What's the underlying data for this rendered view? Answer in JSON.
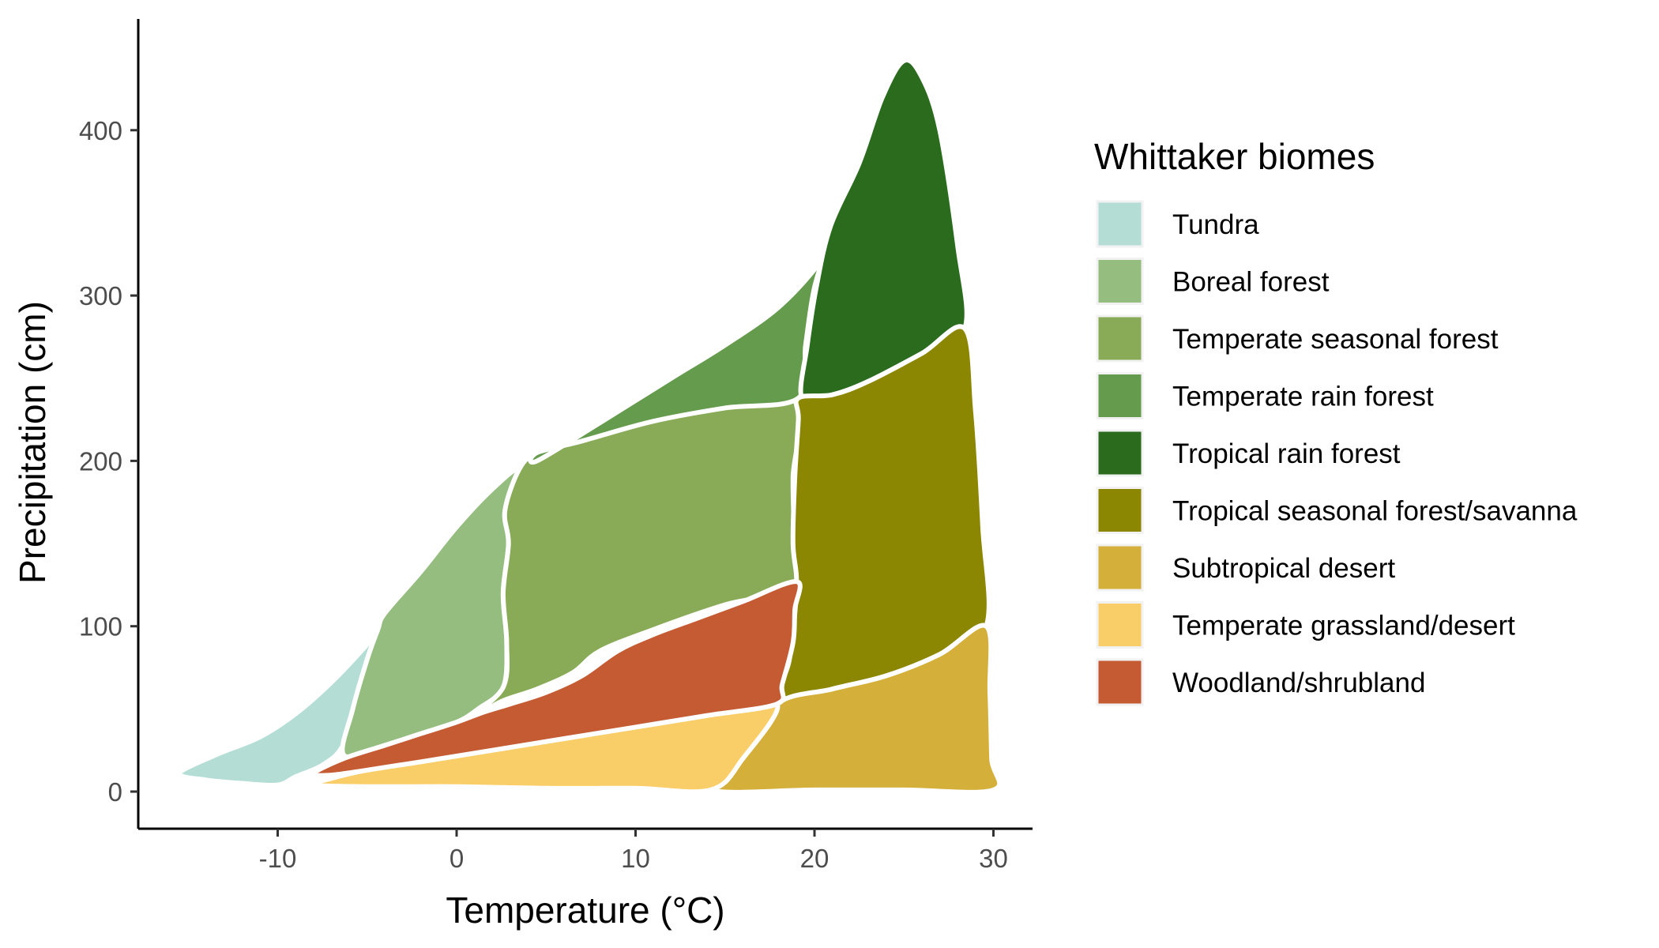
{
  "chart_data": {
    "type": "area",
    "xlabel": "Temperature (°C)",
    "ylabel": "Precipitation (cm)",
    "xlim": [
      -18,
      32
    ],
    "ylim": [
      -20,
      465
    ],
    "xticks": [
      -10,
      0,
      10,
      20,
      30
    ],
    "yticks": [
      0,
      100,
      200,
      300,
      400
    ],
    "xtick_labels": [
      "-10",
      "0",
      "10",
      "20",
      "30"
    ],
    "ytick_labels": [
      "0",
      "100",
      "200",
      "300",
      "400"
    ],
    "grid": false,
    "legend": {
      "title": "Whittaker biomes",
      "position": "right"
    },
    "series": [
      {
        "name": "Tundra",
        "color": "#B3DDD5",
        "points": [
          [
            -15.5,
            11
          ],
          [
            -13.5,
            22
          ],
          [
            -11,
            33
          ],
          [
            -9,
            47
          ],
          [
            -7,
            66
          ],
          [
            -5,
            89
          ],
          [
            -4.4,
            98
          ],
          [
            -5,
            80
          ],
          [
            -5.8,
            50
          ],
          [
            -6.4,
            27
          ],
          [
            -7.5,
            16
          ],
          [
            -9,
            9
          ],
          [
            -10,
            4
          ],
          [
            -12,
            5
          ],
          [
            -14,
            7
          ]
        ]
      },
      {
        "name": "Boreal forest",
        "color": "#95BD7F",
        "points": [
          [
            -4.4,
            98
          ],
          [
            -4,
            108
          ],
          [
            -2,
            133
          ],
          [
            0,
            160
          ],
          [
            2,
            183
          ],
          [
            3.5,
            195
          ],
          [
            2.7,
            170
          ],
          [
            2.9,
            150
          ],
          [
            2.6,
            120
          ],
          [
            2.8,
            90
          ],
          [
            2.6,
            63
          ],
          [
            1.2,
            50
          ],
          [
            0,
            42
          ],
          [
            -2,
            35
          ],
          [
            -4,
            28
          ],
          [
            -6.3,
            22
          ],
          [
            -5.8,
            50
          ],
          [
            -5,
            80
          ]
        ]
      },
      {
        "name": "Temperate seasonal forest",
        "color": "#89AB58",
        "points": [
          [
            3.5,
            195
          ],
          [
            4.5,
            205
          ],
          [
            7,
            215
          ],
          [
            11,
            228
          ],
          [
            15,
            233
          ],
          [
            19,
            235
          ],
          [
            18.8,
            190
          ],
          [
            18.9,
            150
          ],
          [
            19,
            124
          ],
          [
            15,
            113
          ],
          [
            11,
            98
          ],
          [
            8,
            85
          ],
          [
            6.5,
            72
          ],
          [
            4.5,
            62
          ],
          [
            2.6,
            55
          ],
          [
            0.8,
            45
          ],
          [
            2.6,
            63
          ],
          [
            2.8,
            90
          ],
          [
            2.6,
            120
          ],
          [
            2.9,
            150
          ],
          [
            2.7,
            170
          ]
        ]
      },
      {
        "name": "Temperate rain forest",
        "color": "#649B4C",
        "points": [
          [
            4.5,
            200
          ],
          [
            8,
            223
          ],
          [
            12,
            250
          ],
          [
            15,
            270
          ],
          [
            18,
            293
          ],
          [
            20.3,
            320
          ],
          [
            20.9,
            336
          ],
          [
            20,
            305
          ],
          [
            19.5,
            270
          ],
          [
            19.1,
            238
          ],
          [
            15,
            232
          ],
          [
            11,
            224
          ],
          [
            7,
            212
          ],
          [
            4.5,
            205
          ]
        ]
      },
      {
        "name": "Tropical rain forest",
        "color": "#2A6B1E",
        "points": [
          [
            20.9,
            342
          ],
          [
            22.5,
            380
          ],
          [
            23.8,
            420
          ],
          [
            25,
            442
          ],
          [
            26,
            432
          ],
          [
            27,
            400
          ],
          [
            28,
            330
          ],
          [
            28.4,
            280
          ],
          [
            26,
            265
          ],
          [
            23,
            248
          ],
          [
            21,
            240
          ],
          [
            19.3,
            238
          ],
          [
            19.6,
            270
          ],
          [
            20.1,
            305
          ]
        ]
      },
      {
        "name": "Tropical seasonal forest/savanna",
        "color": "#8C8702",
        "points": [
          [
            19.1,
            238
          ],
          [
            21,
            240
          ],
          [
            23,
            248
          ],
          [
            26,
            265
          ],
          [
            28.4,
            280
          ],
          [
            29,
            230
          ],
          [
            29.4,
            160
          ],
          [
            29.6,
            100
          ],
          [
            27,
            83
          ],
          [
            24,
            70
          ],
          [
            21,
            62
          ],
          [
            17.9,
            53
          ],
          [
            18.6,
            80
          ],
          [
            19,
            124
          ],
          [
            18.8,
            150
          ],
          [
            18.9,
            190
          ],
          [
            19.1,
            225
          ]
        ]
      },
      {
        "name": "Subtropical desert",
        "color": "#D4AF3A",
        "points": [
          [
            14.2,
            1
          ],
          [
            16,
            20
          ],
          [
            17.9,
            53
          ],
          [
            21,
            62
          ],
          [
            24,
            70
          ],
          [
            27,
            83
          ],
          [
            29.6,
            100
          ],
          [
            29.8,
            60
          ],
          [
            29.9,
            20
          ],
          [
            30,
            1
          ],
          [
            25,
            1
          ],
          [
            20,
            1
          ]
        ]
      },
      {
        "name": "Temperate grassland/desert",
        "color": "#F9CE68",
        "points": [
          [
            -8,
            4
          ],
          [
            -7,
            8
          ],
          [
            -5,
            13
          ],
          [
            -2,
            18
          ],
          [
            2,
            25
          ],
          [
            6,
            32
          ],
          [
            10,
            39
          ],
          [
            14,
            46
          ],
          [
            17.9,
            53
          ],
          [
            16,
            20
          ],
          [
            14.2,
            1
          ],
          [
            10,
            2
          ],
          [
            5,
            2
          ],
          [
            0,
            3
          ],
          [
            -5,
            3
          ]
        ]
      },
      {
        "name": "Woodland/shrubland",
        "color": "#C55B33",
        "points": [
          [
            -8,
            11
          ],
          [
            -6.3,
            20
          ],
          [
            -4,
            28
          ],
          [
            -2,
            35
          ],
          [
            0,
            42
          ],
          [
            1.5,
            48
          ],
          [
            3,
            53
          ],
          [
            5,
            60
          ],
          [
            7,
            70
          ],
          [
            9,
            85
          ],
          [
            11,
            95
          ],
          [
            13.5,
            105
          ],
          [
            16,
            115
          ],
          [
            19,
            127
          ],
          [
            18.9,
            110
          ],
          [
            18.8,
            90
          ],
          [
            18.2,
            65
          ],
          [
            17.9,
            53
          ],
          [
            14,
            46
          ],
          [
            10,
            39
          ],
          [
            6,
            32
          ],
          [
            2,
            25
          ],
          [
            -2,
            18
          ],
          [
            -5,
            13
          ],
          [
            -7,
            10
          ]
        ]
      }
    ]
  }
}
